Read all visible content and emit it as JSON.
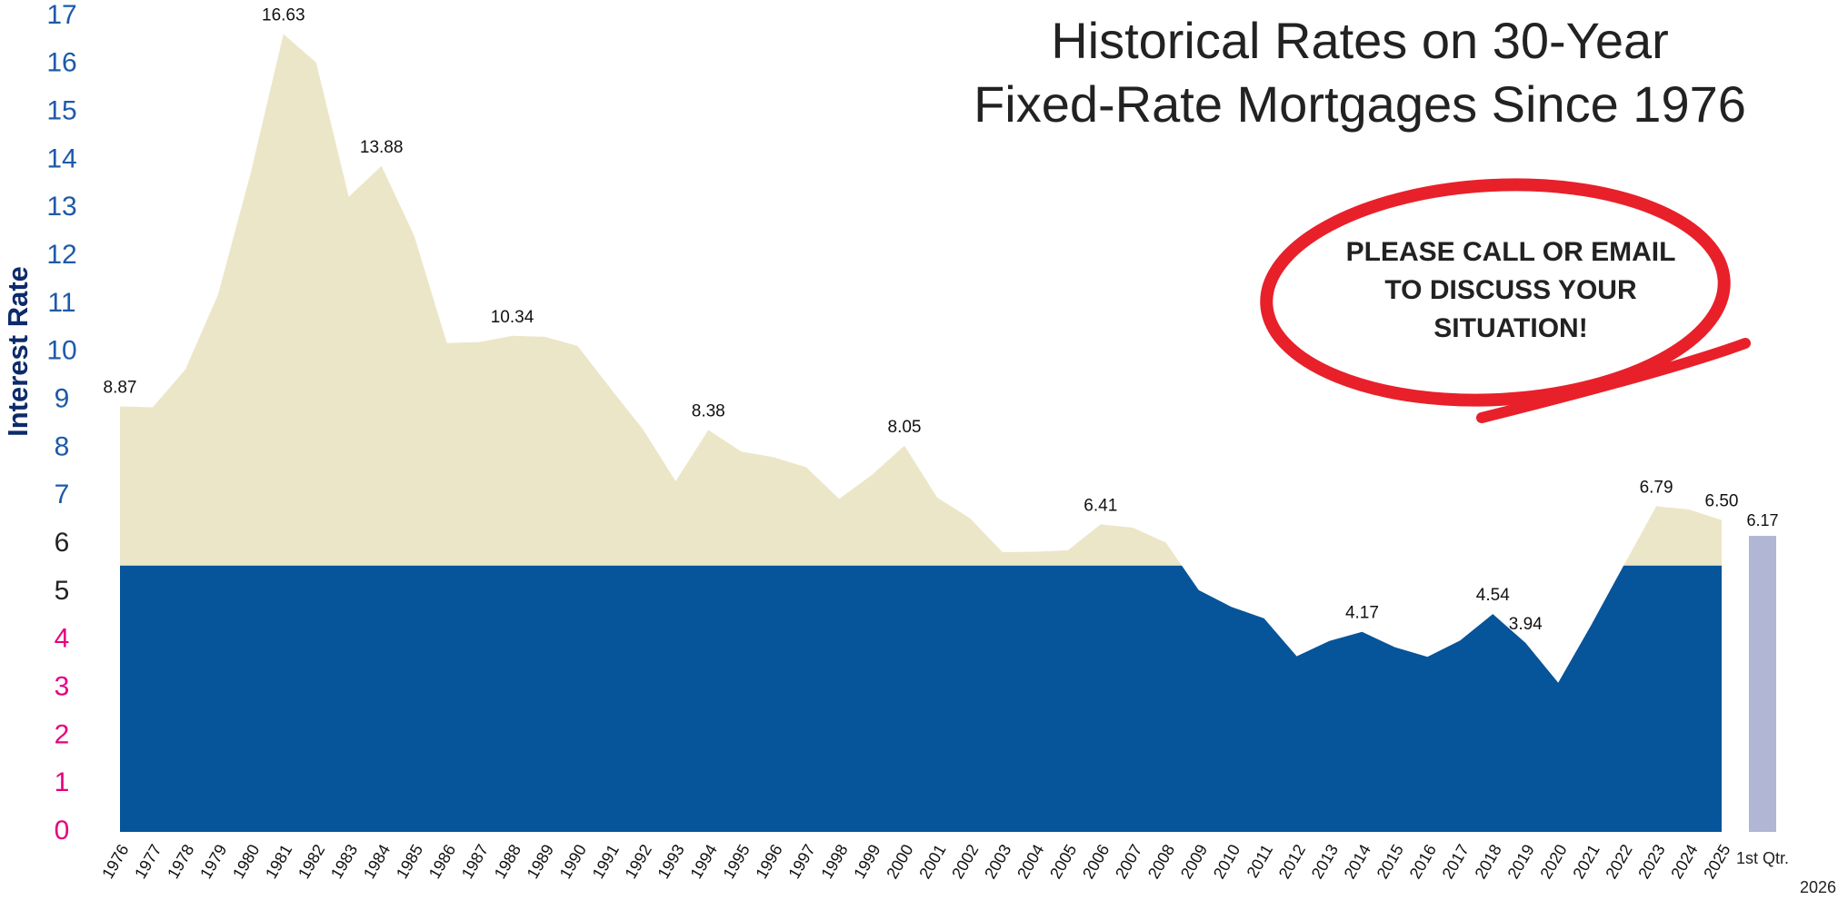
{
  "chart_data": {
    "type": "area",
    "title_lines": [
      "Historical Rates on 30-Year",
      "Fixed-Rate Mortgages Since 1976"
    ],
    "y_label": "Interest Rate",
    "annotation_lines": [
      "PLEASE CALL OR EMAIL",
      "TO DISCUSS YOUR",
      "SITUATION!"
    ],
    "categories": [
      "1976",
      "1977",
      "1978",
      "1979",
      "1980",
      "1981",
      "1982",
      "1983",
      "1984",
      "1985",
      "1986",
      "1987",
      "1988",
      "1989",
      "1990",
      "1991",
      "1992",
      "1993",
      "1994",
      "1995",
      "1996",
      "1997",
      "1998",
      "1999",
      "2000",
      "2001",
      "2002",
      "2003",
      "2004",
      "2005",
      "2006",
      "2007",
      "2008",
      "2009",
      "2010",
      "2011",
      "2012",
      "2013",
      "2014",
      "2015",
      "2016",
      "2017",
      "2018",
      "2019",
      "2020",
      "2021",
      "2022",
      "2023",
      "2024",
      "2025"
    ],
    "values": [
      8.87,
      8.85,
      9.64,
      11.2,
      13.74,
      16.63,
      16.04,
      13.24,
      13.88,
      12.43,
      10.19,
      10.21,
      10.34,
      10.32,
      10.13,
      9.25,
      8.39,
      7.31,
      8.38,
      7.93,
      7.81,
      7.6,
      6.94,
      7.44,
      8.05,
      6.97,
      6.54,
      5.83,
      5.84,
      5.87,
      6.41,
      6.34,
      6.03,
      5.04,
      4.69,
      4.45,
      3.66,
      3.98,
      4.17,
      3.85,
      3.65,
      3.99,
      4.54,
      3.94,
      3.11,
      4.3,
      5.55,
      6.79,
      6.72,
      6.5
    ],
    "value_labels": [
      "8.87",
      null,
      null,
      null,
      null,
      "16.63",
      null,
      null,
      "13.88",
      null,
      null,
      null,
      "10.34",
      null,
      null,
      null,
      null,
      null,
      "8.38",
      null,
      null,
      null,
      null,
      null,
      "8.05",
      null,
      null,
      null,
      null,
      null,
      "6.41",
      null,
      null,
      null,
      null,
      null,
      null,
      null,
      "4.17",
      null,
      null,
      null,
      "4.54",
      "3.94",
      null,
      null,
      null,
      "6.79",
      null,
      "6.50"
    ],
    "color": "#ece6c8",
    "fill_split": 5.55,
    "split_color": "#06549a",
    "bar": {
      "category": "1st Qtr.",
      "year": "2026",
      "value": 6.17,
      "value_label": "6.17",
      "color": "#b0b6d3"
    },
    "ylim": [
      0,
      17
    ],
    "yticks": [
      0,
      1,
      2,
      3,
      4,
      5,
      6,
      7,
      8,
      9,
      10,
      11,
      12,
      13,
      14,
      15,
      16,
      17
    ],
    "ytick_colors": [
      "#e6007e",
      "#e6007e",
      "#e6007e",
      "#e6007e",
      "#e6007e",
      "#222222",
      "#222222",
      "#1d5aa8",
      "#1d5aa8",
      "#1d5aa8",
      "#1d5aa8",
      "#1d5aa8",
      "#1d5aa8",
      "#1d5aa8",
      "#1d5aa8",
      "#1d5aa8",
      "#1d5aa8",
      "#1d5aa8"
    ],
    "annotation_color": "#e8202a"
  }
}
